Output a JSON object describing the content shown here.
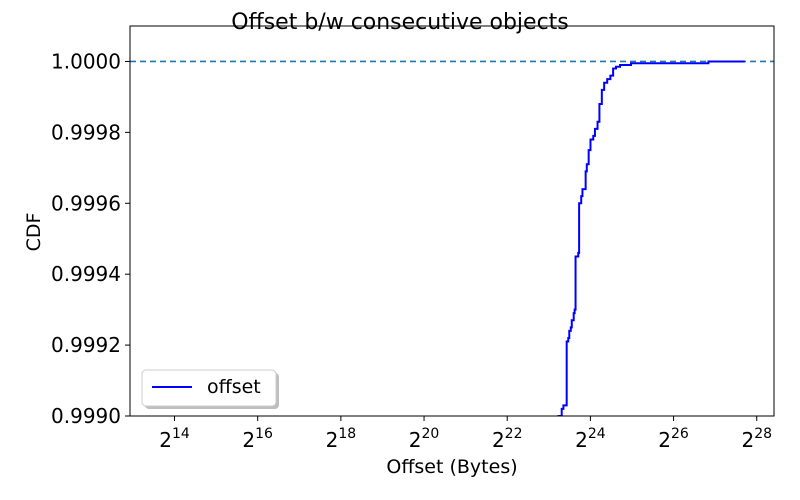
{
  "chart_data": {
    "type": "line",
    "title": "Offset b/w consecutive objects",
    "xlabel": "Offset (Bytes)",
    "ylabel": "CDF",
    "x_scale": "log2",
    "xlim": [
      7800,
      357913941
    ],
    "ylim": [
      0.999,
      1.0001
    ],
    "x_tick_labels": [
      {
        "value": 16384,
        "base": "2",
        "exp": "14"
      },
      {
        "value": 65536,
        "base": "2",
        "exp": "16"
      },
      {
        "value": 262144,
        "base": "2",
        "exp": "18"
      },
      {
        "value": 1048576,
        "base": "2",
        "exp": "20"
      },
      {
        "value": 4194304,
        "base": "2",
        "exp": "22"
      },
      {
        "value": 16777216,
        "base": "2",
        "exp": "24"
      },
      {
        "value": 67108864,
        "base": "2",
        "exp": "26"
      },
      {
        "value": 268435456,
        "base": "2",
        "exp": "28"
      }
    ],
    "y_ticks": [
      0.999,
      0.9992,
      0.9994,
      0.9996,
      0.9998,
      1.0
    ],
    "y_tick_labels": [
      "0.9990",
      "0.9992",
      "0.9994",
      "0.9996",
      "0.9998",
      "1.0000"
    ],
    "reference_line": {
      "y": 1.0,
      "style": "dashed",
      "color": "#1f77b4"
    },
    "legend_position": "lower-left",
    "grid": false,
    "series": [
      {
        "name": "offset",
        "color": "#0000ff",
        "points": [
          [
            9700000,
            0.999
          ],
          [
            10400000,
            0.99902
          ],
          [
            10600000,
            0.99902
          ],
          [
            10700000,
            0.99903
          ],
          [
            11200000,
            0.99903
          ],
          [
            11300000,
            0.99921
          ],
          [
            11600000,
            0.99922
          ],
          [
            11800000,
            0.99924
          ],
          [
            12100000,
            0.99925
          ],
          [
            12300000,
            0.99927
          ],
          [
            12700000,
            0.99929
          ],
          [
            12900000,
            0.9993
          ],
          [
            13100000,
            0.99945
          ],
          [
            13700000,
            0.99946
          ],
          [
            13900000,
            0.9996
          ],
          [
            14400000,
            0.99962
          ],
          [
            14700000,
            0.99964
          ],
          [
            15300000,
            0.99964
          ],
          [
            15500000,
            0.99969
          ],
          [
            15800000,
            0.99971
          ],
          [
            16300000,
            0.99975
          ],
          [
            16800000,
            0.99978
          ],
          [
            17600000,
            0.99979
          ],
          [
            18100000,
            0.99981
          ],
          [
            18900000,
            0.99983
          ],
          [
            19500000,
            0.99988
          ],
          [
            20300000,
            0.99992
          ],
          [
            21100000,
            0.99994
          ],
          [
            22200000,
            0.99995
          ],
          [
            23400000,
            0.99996
          ],
          [
            24500000,
            0.99998
          ],
          [
            25700000,
            0.999985
          ],
          [
            27500000,
            0.99999
          ],
          [
            29400000,
            0.99999
          ],
          [
            33000000,
            0.999995
          ],
          [
            60000000,
            0.999995
          ],
          [
            120000000,
            1.0
          ],
          [
            220000000,
            1.0
          ]
        ]
      }
    ]
  }
}
